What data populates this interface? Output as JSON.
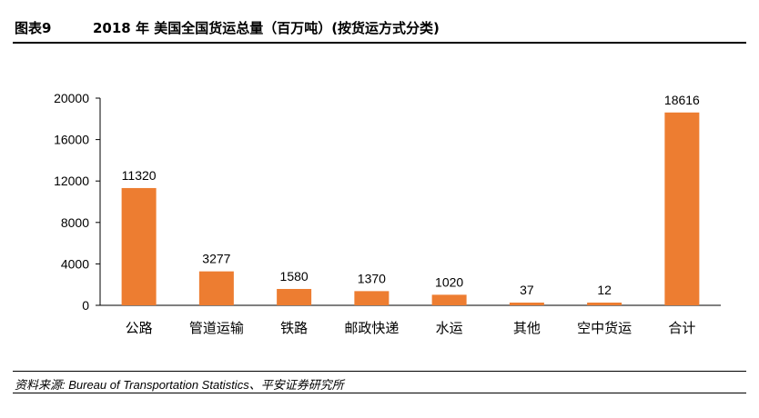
{
  "header": {
    "figure_label": "图表9",
    "title": "2018 年 美国全国货运总量（百万吨）(按货运方式分类)"
  },
  "source_text": "资料来源: Bureau of Transportation Statistics、平安证券研究所",
  "colors": {
    "bar": "#ED7D31",
    "axis": "#000000",
    "text": "#000000"
  },
  "chart_data": {
    "type": "bar",
    "categories": [
      "公路",
      "管道运输",
      "铁路",
      "邮政快递",
      "水运",
      "其他",
      "空中货运",
      "合计"
    ],
    "values": [
      11320,
      3277,
      1580,
      1370,
      1020,
      37,
      12,
      18616
    ],
    "data_labels": [
      "11320",
      "3277",
      "1580",
      "1370",
      "1020",
      "37",
      "12",
      "18616"
    ],
    "yticks": [
      0,
      4000,
      8000,
      12000,
      16000,
      20000
    ],
    "ylim": [
      0,
      20000
    ],
    "grid": false,
    "legend": "none"
  }
}
